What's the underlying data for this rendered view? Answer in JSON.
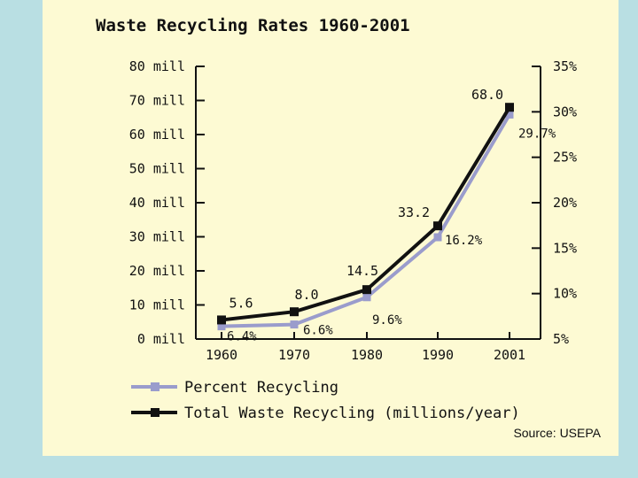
{
  "chart_data": {
    "type": "line",
    "title": "Waste Recycling Rates 1960-2001",
    "categories": [
      "1960",
      "1970",
      "1980",
      "1990",
      "2001"
    ],
    "left_axis": {
      "ticks": [
        "0 mill",
        "10 mill",
        "20 mill",
        "30 mill",
        "40 mill",
        "50 mill",
        "60 mill",
        "70 mill",
        "80 mill"
      ],
      "range": [
        0,
        80
      ]
    },
    "right_axis": {
      "ticks": [
        "5%",
        "10%",
        "15%",
        "20%",
        "25%",
        "30%",
        "35%"
      ],
      "range": [
        5,
        35
      ]
    },
    "series": [
      {
        "name": "Total Waste Recycling (millions/year)",
        "axis": "left",
        "color": "#111111",
        "values": [
          5.6,
          8.0,
          14.5,
          33.2,
          68.0
        ],
        "labels": [
          "5.6",
          "8.0",
          "14.5",
          "33.2",
          "68.0"
        ]
      },
      {
        "name": "Percent Recycling",
        "axis": "right",
        "color": "#9a9ccc",
        "values": [
          6.4,
          6.6,
          9.6,
          16.2,
          29.7
        ],
        "labels": [
          "6.4%",
          "6.6%",
          "9.6%",
          "16.2%",
          "29.7%"
        ]
      }
    ],
    "legend": [
      "Percent Recycling",
      "Total Waste Recycling (millions/year)"
    ],
    "legend_position": "bottom"
  },
  "footer": {
    "source": "Source: USEPA"
  }
}
